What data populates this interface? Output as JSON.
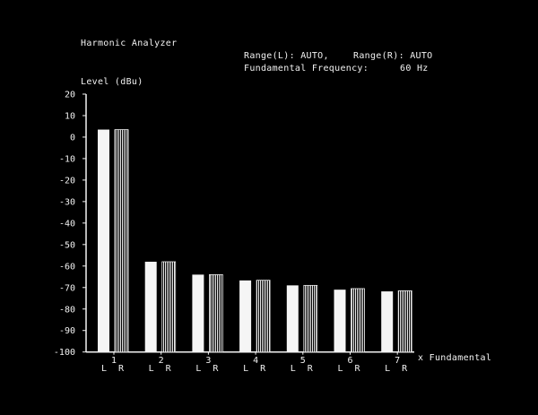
{
  "header": {
    "title": "Harmonic Analyzer",
    "range_l": "Range(L): AUTO,",
    "range_r": "Range(R): AUTO",
    "fundamental_label": "Fundamental Frequency:",
    "fundamental_value": "60 Hz"
  },
  "colors": {
    "background": "#000000",
    "foreground": "#f2f2f2"
  },
  "chart_data": {
    "type": "bar",
    "ylabel": "Level (dBu)",
    "xlabel": "x Fundamental",
    "ylim": [
      -100,
      20
    ],
    "yticks": [
      20,
      10,
      0,
      -10,
      -20,
      -30,
      -40,
      -50,
      -60,
      -70,
      -80,
      -90,
      -100
    ],
    "categories": [
      "1",
      "2",
      "3",
      "4",
      "5",
      "6",
      "7"
    ],
    "channel_labels": [
      "L",
      "R"
    ],
    "grid": false,
    "series": [
      {
        "name": "L",
        "style": "solid",
        "values": [
          3.5,
          -58,
          -64,
          -66.7,
          -69,
          -71,
          -71.8
        ]
      },
      {
        "name": "R",
        "style": "hatched",
        "values": [
          3.5,
          -58,
          -64,
          -66.6,
          -69,
          -70.5,
          -71.5
        ]
      }
    ]
  }
}
